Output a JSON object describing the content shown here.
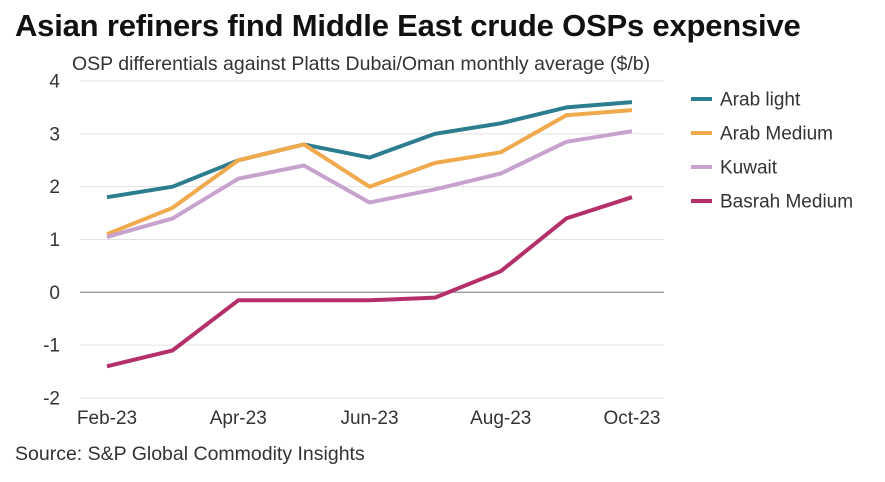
{
  "header": {
    "title": "Asian refiners find Middle East crude OSPs expensive",
    "subtitle": "OSP differentials against Platts Dubai/Oman monthly average ($/b)"
  },
  "footer": {
    "source": "Source: S&P Global Commodity Insights"
  },
  "chart_data": {
    "type": "line",
    "title": "Asian refiners find Middle East crude OSPs expensive",
    "subtitle": "OSP differentials against Platts Dubai/Oman monthly average ($/b)",
    "xlabel": "",
    "ylabel": "$/b",
    "categories": [
      "Feb-23",
      "Mar-23",
      "Apr-23",
      "May-23",
      "Jun-23",
      "Jul-23",
      "Aug-23",
      "Sep-23",
      "Oct-23"
    ],
    "x_tick_labels": [
      "Feb-23",
      "Apr-23",
      "Jun-23",
      "Aug-23",
      "Oct-23"
    ],
    "y_ticks": [
      -2,
      -1,
      0,
      1,
      2,
      3,
      4
    ],
    "ylim": [
      -2,
      4
    ],
    "grid": true,
    "legend_position": "right",
    "series": [
      {
        "name": "Arab light",
        "color": "#2b7d8f",
        "values": [
          1.8,
          2.0,
          2.5,
          2.8,
          2.55,
          3.0,
          3.2,
          3.5,
          3.6
        ]
      },
      {
        "name": "Arab Medium",
        "color": "#f0a94c",
        "values": [
          1.1,
          1.6,
          2.5,
          2.8,
          2.0,
          2.45,
          2.65,
          3.35,
          3.45
        ]
      },
      {
        "name": "Kuwait",
        "color": "#c8a2cf",
        "values": [
          1.05,
          1.4,
          2.15,
          2.4,
          1.7,
          1.95,
          2.25,
          2.85,
          3.05
        ]
      },
      {
        "name": "Basrah Medium",
        "color": "#b5306a",
        "values": [
          -1.4,
          -1.1,
          -0.15,
          -0.15,
          -0.15,
          -0.1,
          0.4,
          1.4,
          1.8
        ]
      }
    ]
  }
}
